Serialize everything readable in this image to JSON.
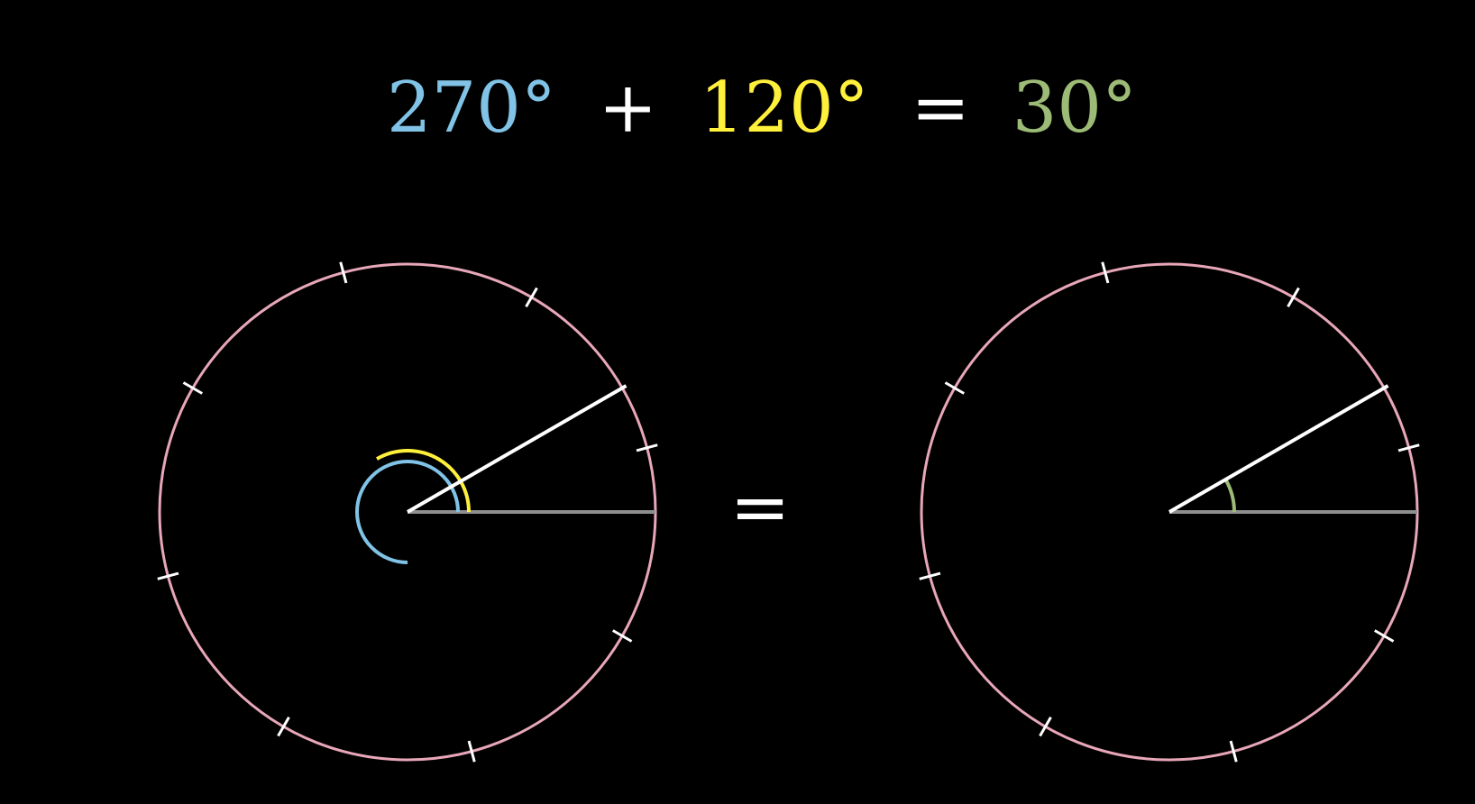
{
  "colors": {
    "background": "#000000",
    "circle": "#e8a7b8",
    "tick": "#ffffff",
    "hand": "#ffffff",
    "reference": "#8f8f8f",
    "term_a": "#80c3e6",
    "term_b": "#fff03c",
    "result": "#9cbb76",
    "operator": "#ffffff"
  },
  "equation": {
    "term_a": "270°",
    "plus": "+",
    "term_b": "120°",
    "equals": "=",
    "result": "30°"
  },
  "middle_equals": "=",
  "angles": {
    "term_a_deg": 270,
    "term_b_deg": 120,
    "result_deg": 30,
    "tick_step_deg": 45,
    "tick_offset_deg": 15
  }
}
